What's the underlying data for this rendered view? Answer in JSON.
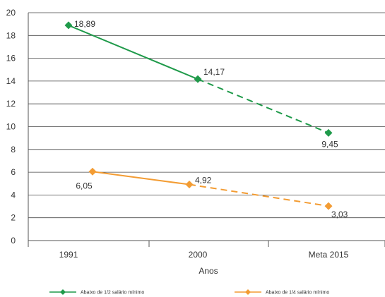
{
  "chart_data": {
    "type": "line",
    "xlabel": "Anos",
    "ylabel": "",
    "categories": [
      "1991",
      "2000",
      "Meta 2015"
    ],
    "ylim": [
      0,
      20
    ],
    "y_ticks": [
      0,
      2,
      4,
      6,
      8,
      10,
      12,
      14,
      16,
      18,
      20
    ],
    "grid": "horizontal",
    "legend_position": "bottom",
    "series": [
      {
        "name": "Abaixo de 1/2 salário mínimo",
        "color": "#1f9a4a",
        "marker": "diamond",
        "values": [
          18.89,
          14.17,
          9.45
        ],
        "labels": [
          "18,89",
          "14,17",
          "9,45"
        ],
        "line_style": [
          "solid",
          "dashed"
        ]
      },
      {
        "name": "Abaixo de 1/4 salário mínimo",
        "color": "#f39c33",
        "marker": "diamond",
        "values": [
          6.05,
          4.92,
          3.03
        ],
        "labels": [
          "6,05",
          "4,92",
          "3,03"
        ],
        "line_style": [
          "solid",
          "dashed"
        ]
      }
    ]
  }
}
